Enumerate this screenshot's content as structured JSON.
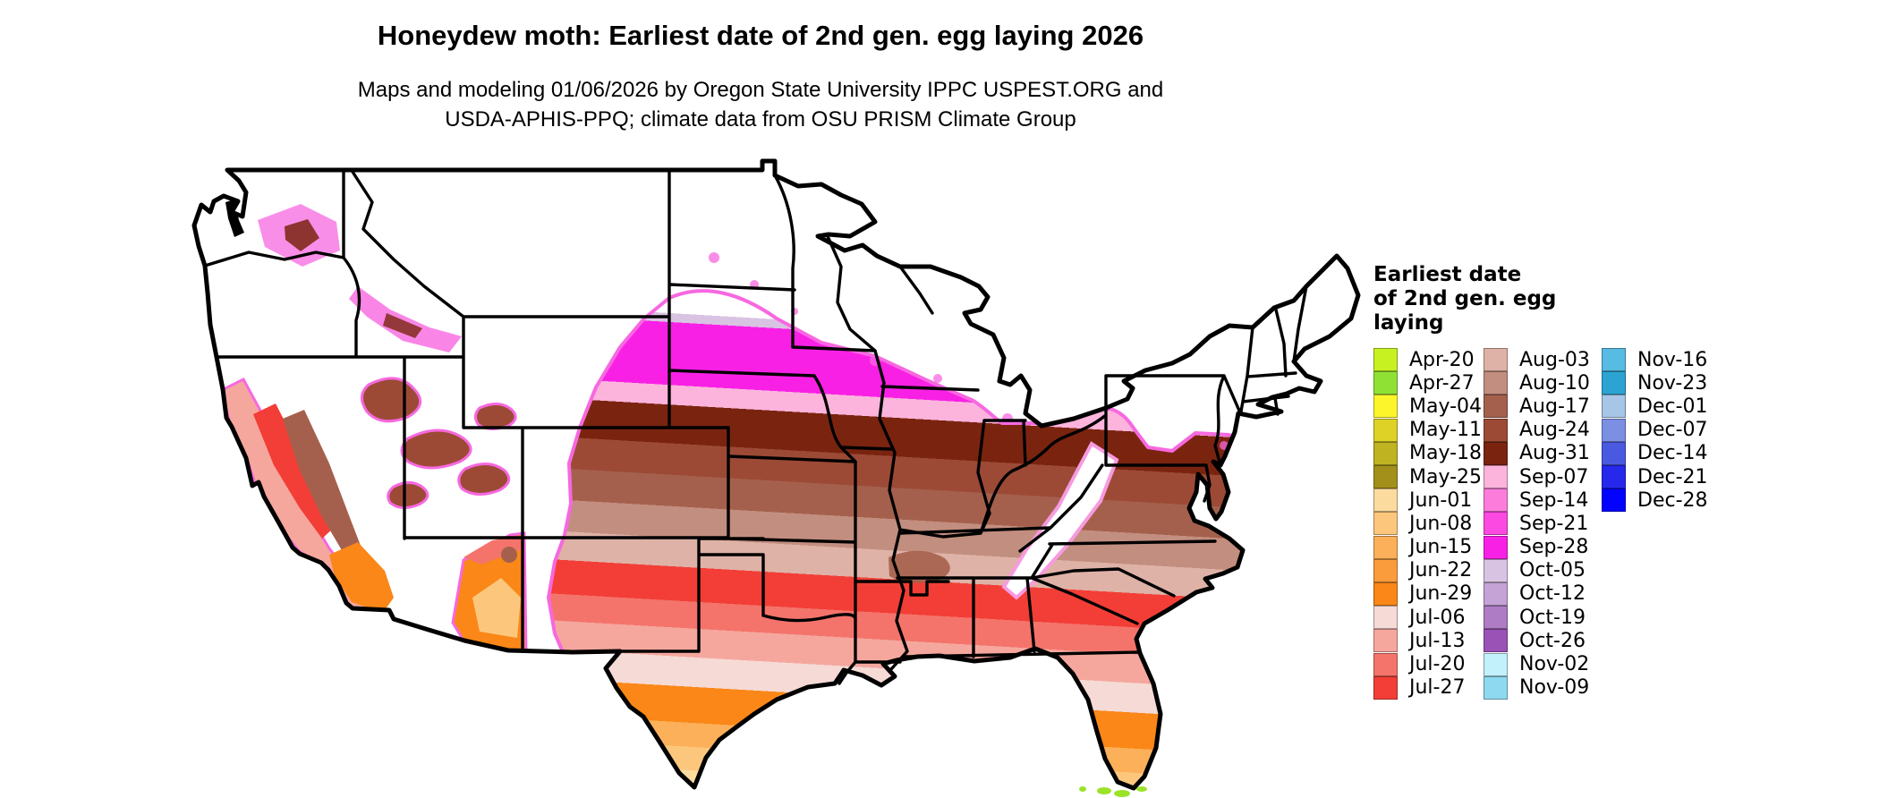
{
  "title": "Honeydew moth: Earliest date of 2nd gen. egg laying 2026",
  "subtitle_line1": "Maps and modeling 01/06/2026 by Oregon State University IPPC USPEST.ORG and",
  "subtitle_line2": "USDA-APHIS-PPQ; climate data from OSU PRISM Climate Group",
  "legend": {
    "title_lines": [
      "Earliest date",
      "of 2nd gen. egg",
      "laying"
    ],
    "columns": [
      [
        {
          "label": "Apr-20",
          "color": "#c8f122"
        },
        {
          "label": "Apr-27",
          "color": "#8fe234"
        },
        {
          "label": "May-04",
          "color": "#fdf52b"
        },
        {
          "label": "May-11",
          "color": "#ded226"
        },
        {
          "label": "May-18",
          "color": "#c0b321"
        },
        {
          "label": "May-25",
          "color": "#a2901b"
        },
        {
          "label": "Jun-01",
          "color": "#fcdb9f"
        },
        {
          "label": "Jun-08",
          "color": "#fcc77d"
        },
        {
          "label": "Jun-15",
          "color": "#fbb059"
        },
        {
          "label": "Jun-22",
          "color": "#fb9c3c"
        },
        {
          "label": "Jun-29",
          "color": "#fa8717"
        },
        {
          "label": "Jul-06",
          "color": "#f6dad5"
        },
        {
          "label": "Jul-13",
          "color": "#f5a79e"
        },
        {
          "label": "Jul-20",
          "color": "#f4746b"
        },
        {
          "label": "Jul-27",
          "color": "#f23e37"
        }
      ],
      [
        {
          "label": "Aug-03",
          "color": "#dfb2a7"
        },
        {
          "label": "Aug-10",
          "color": "#c28e7f"
        },
        {
          "label": "Aug-17",
          "color": "#a5604d"
        },
        {
          "label": "Aug-24",
          "color": "#9c4a36"
        },
        {
          "label": "Aug-31",
          "color": "#7a2410"
        },
        {
          "label": "Sep-07",
          "color": "#fcb4dc"
        },
        {
          "label": "Sep-14",
          "color": "#fc7cdc"
        },
        {
          "label": "Sep-21",
          "color": "#fb49e1"
        },
        {
          "label": "Sep-28",
          "color": "#f920e5"
        },
        {
          "label": "Oct-05",
          "color": "#d9c3e2"
        },
        {
          "label": "Oct-12",
          "color": "#c5a3d6"
        },
        {
          "label": "Oct-19",
          "color": "#ad7cc5"
        },
        {
          "label": "Oct-26",
          "color": "#9a52b6"
        },
        {
          "label": "Nov-02",
          "color": "#c2f0fb"
        },
        {
          "label": "Nov-09",
          "color": "#8ed9f0"
        }
      ],
      [
        {
          "label": "Nov-16",
          "color": "#57bbe2"
        },
        {
          "label": "Nov-23",
          "color": "#2ba4d3"
        },
        {
          "label": "Dec-01",
          "color": "#a6c5e7"
        },
        {
          "label": "Dec-07",
          "color": "#7b90e3"
        },
        {
          "label": "Dec-14",
          "color": "#4a5ae0"
        },
        {
          "label": "Dec-21",
          "color": "#2629ec"
        },
        {
          "label": "Dec-28",
          "color": "#0202fe"
        }
      ]
    ]
  },
  "map": {
    "region": "Contiguous United States",
    "no_data_color": "#ffffff",
    "state_border_color": "#000000",
    "fringe_color": "#f768e0",
    "band_sequence_north_to_south": [
      "Oct-05",
      "Sep-28",
      "Sep-07",
      "Aug-31",
      "Aug-24",
      "Aug-17",
      "Aug-10",
      "Aug-03",
      "Jul-27",
      "Jul-20",
      "Jul-13",
      "Jul-06",
      "Jun-29",
      "Jun-15",
      "Jun-08",
      "Jun-01",
      "May-25",
      "Apr-27"
    ]
  }
}
